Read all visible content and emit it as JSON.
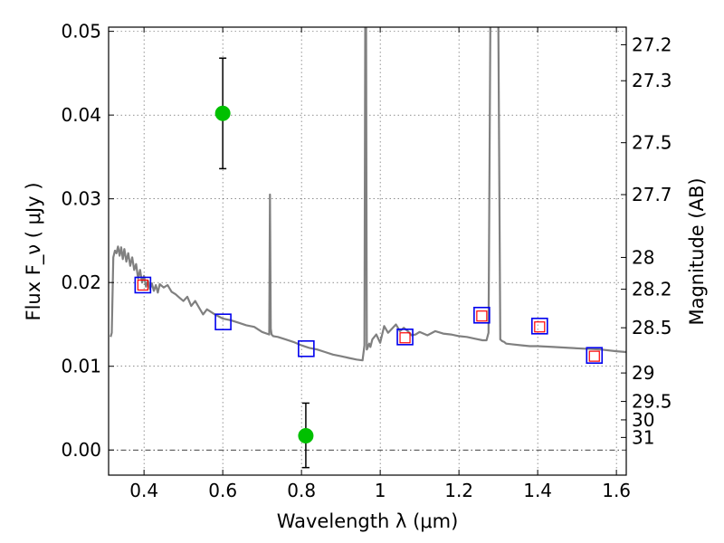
{
  "chart_data": {
    "type": "scatter",
    "xlabel": "Wavelength  λ (μm)",
    "ylabel": "Flux  F_ν  ( μJy )",
    "ylabel_right": "Magnitude (AB)",
    "xlim": [
      0.31,
      1.625
    ],
    "ylim": [
      -0.003,
      0.0505
    ],
    "x_ticks": [
      0.4,
      0.6,
      0.8,
      1.0,
      1.2,
      1.4,
      1.6
    ],
    "x_tick_labels": [
      "0.4",
      "0.6",
      "0.8",
      "1",
      "1.2",
      "1.4",
      "1.6"
    ],
    "y_ticks": [
      0.0,
      0.01,
      0.02,
      0.03,
      0.04,
      0.05
    ],
    "y_tick_labels": [
      "0.00",
      "0.01",
      "0.02",
      "0.03",
      "0.04",
      "0.05"
    ],
    "mag_ticks": [
      {
        "label": "27.2",
        "flux": 0.0484
      },
      {
        "label": "27.3",
        "flux": 0.0441
      },
      {
        "label": "27.5",
        "flux": 0.0367
      },
      {
        "label": "27.7",
        "flux": 0.0305
      },
      {
        "label": "28",
        "flux": 0.023
      },
      {
        "label": "28.2",
        "flux": 0.0192
      },
      {
        "label": "28.5",
        "flux": 0.0146
      },
      {
        "label": "29",
        "flux": 0.0092
      },
      {
        "label": "29.5",
        "flux": 0.0058
      },
      {
        "label": "30",
        "flux": 0.0036
      },
      {
        "label": "31",
        "flux": 0.0015
      }
    ],
    "series": [
      {
        "name": "sed_model",
        "style": "line",
        "color": "#808080",
        "x": [
          0.315,
          0.318,
          0.322,
          0.326,
          0.33,
          0.334,
          0.338,
          0.342,
          0.346,
          0.35,
          0.355,
          0.36,
          0.365,
          0.37,
          0.375,
          0.38,
          0.385,
          0.39,
          0.395,
          0.4,
          0.405,
          0.41,
          0.415,
          0.42,
          0.425,
          0.43,
          0.435,
          0.44,
          0.45,
          0.46,
          0.47,
          0.48,
          0.49,
          0.5,
          0.51,
          0.52,
          0.53,
          0.54,
          0.55,
          0.56,
          0.58,
          0.6,
          0.62,
          0.64,
          0.66,
          0.68,
          0.7,
          0.718,
          0.72,
          0.722,
          0.724,
          0.726,
          0.728,
          0.74,
          0.76,
          0.78,
          0.8,
          0.82,
          0.84,
          0.86,
          0.88,
          0.9,
          0.92,
          0.94,
          0.955,
          0.96,
          0.962,
          0.964,
          0.966,
          0.968,
          0.97,
          0.972,
          0.975,
          0.98,
          0.99,
          1.0,
          1.01,
          1.02,
          1.03,
          1.04,
          1.05,
          1.06,
          1.07,
          1.08,
          1.09,
          1.1,
          1.12,
          1.14,
          1.16,
          1.18,
          1.2,
          1.22,
          1.24,
          1.26,
          1.27,
          1.275,
          1.28,
          1.29,
          1.3,
          1.305,
          1.31,
          1.315,
          1.32,
          1.34,
          1.36,
          1.38,
          1.4,
          1.44,
          1.48,
          1.52,
          1.56,
          1.6,
          1.625
        ],
        "y": [
          0.0135,
          0.014,
          0.023,
          0.0238,
          0.0235,
          0.0243,
          0.0232,
          0.0242,
          0.0228,
          0.024,
          0.0225,
          0.0235,
          0.022,
          0.023,
          0.0215,
          0.0222,
          0.0205,
          0.0215,
          0.02,
          0.0208,
          0.0195,
          0.0202,
          0.0192,
          0.0199,
          0.019,
          0.0197,
          0.0188,
          0.0198,
          0.0194,
          0.0197,
          0.0189,
          0.0186,
          0.0182,
          0.0178,
          0.0183,
          0.0172,
          0.0178,
          0.017,
          0.0162,
          0.0168,
          0.0162,
          0.0157,
          0.0155,
          0.0152,
          0.0149,
          0.0147,
          0.0141,
          0.0138,
          0.0305,
          0.0145,
          0.0138,
          0.0137,
          0.0136,
          0.0135,
          0.0132,
          0.0129,
          0.0125,
          0.0122,
          0.012,
          0.0117,
          0.0114,
          0.0112,
          0.011,
          0.0108,
          0.0107,
          0.0125,
          0.052,
          0.052,
          0.012,
          0.0122,
          0.0125,
          0.0127,
          0.0123,
          0.0132,
          0.0138,
          0.0128,
          0.0148,
          0.014,
          0.0145,
          0.015,
          0.0142,
          0.0146,
          0.0142,
          0.0137,
          0.0138,
          0.0141,
          0.0137,
          0.0142,
          0.0139,
          0.0138,
          0.0136,
          0.0135,
          0.0133,
          0.0131,
          0.0131,
          0.014,
          0.052,
          0.052,
          0.052,
          0.0132,
          0.013,
          0.0129,
          0.0127,
          0.0126,
          0.0125,
          0.0124,
          0.0124,
          0.0123,
          0.0122,
          0.0121,
          0.012,
          0.0118,
          0.0117
        ]
      },
      {
        "name": "observed_flux",
        "style": "marker",
        "marker": "filled-circle",
        "color": "#00c000",
        "points": [
          {
            "x": 0.6,
            "y": 0.0402,
            "yerr_low": 0.0336,
            "yerr_high": 0.0468
          },
          {
            "x": 0.811,
            "y": 0.0017,
            "yerr_low": -0.0021,
            "yerr_high": 0.0056
          }
        ]
      },
      {
        "name": "model_band_flux",
        "style": "marker",
        "marker": "open-square",
        "color": "#0000ee",
        "x": [
          0.397,
          0.601,
          0.812,
          1.063,
          1.258,
          1.405,
          1.544
        ],
        "y": [
          0.0197,
          0.0153,
          0.0121,
          0.0135,
          0.0161,
          0.0148,
          0.0113
        ]
      },
      {
        "name": "model_band_flux_inner",
        "style": "marker",
        "marker": "open-square-small",
        "color": "#ff0000",
        "x": [
          0.397,
          1.063,
          1.258,
          1.405,
          1.544
        ],
        "y": [
          0.0197,
          0.0134,
          0.016,
          0.0147,
          0.0112
        ]
      }
    ],
    "zero_line": {
      "y": 0.0,
      "style": "dash-dot"
    },
    "grid": true,
    "legend": "none"
  }
}
